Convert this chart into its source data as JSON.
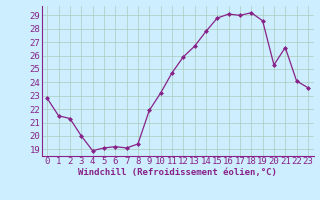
{
  "x": [
    0,
    1,
    2,
    3,
    4,
    5,
    6,
    7,
    8,
    9,
    10,
    11,
    12,
    13,
    14,
    15,
    16,
    17,
    18,
    19,
    20,
    21,
    22,
    23
  ],
  "y": [
    22.8,
    21.5,
    21.3,
    20.0,
    18.9,
    19.1,
    19.2,
    19.1,
    19.4,
    21.9,
    23.2,
    24.7,
    25.9,
    26.7,
    27.8,
    28.8,
    29.1,
    29.0,
    29.2,
    28.6,
    25.3,
    26.6,
    24.1,
    23.6
  ],
  "line_color": "#882288",
  "marker": "D",
  "marker_size": 2,
  "bg_color": "#cceeff",
  "grid_color": "#aaccbb",
  "xlabel": "Windchill (Refroidissement éolien,°C)",
  "yticks": [
    19,
    20,
    21,
    22,
    23,
    24,
    25,
    26,
    27,
    28,
    29
  ],
  "xticks": [
    0,
    1,
    2,
    3,
    4,
    5,
    6,
    7,
    8,
    9,
    10,
    11,
    12,
    13,
    14,
    15,
    16,
    17,
    18,
    19,
    20,
    21,
    22,
    23
  ],
  "ylim": [
    18.5,
    29.7
  ],
  "xlim": [
    -0.5,
    23.5
  ],
  "tick_fontsize": 6.5,
  "xlabel_fontsize": 6.5
}
